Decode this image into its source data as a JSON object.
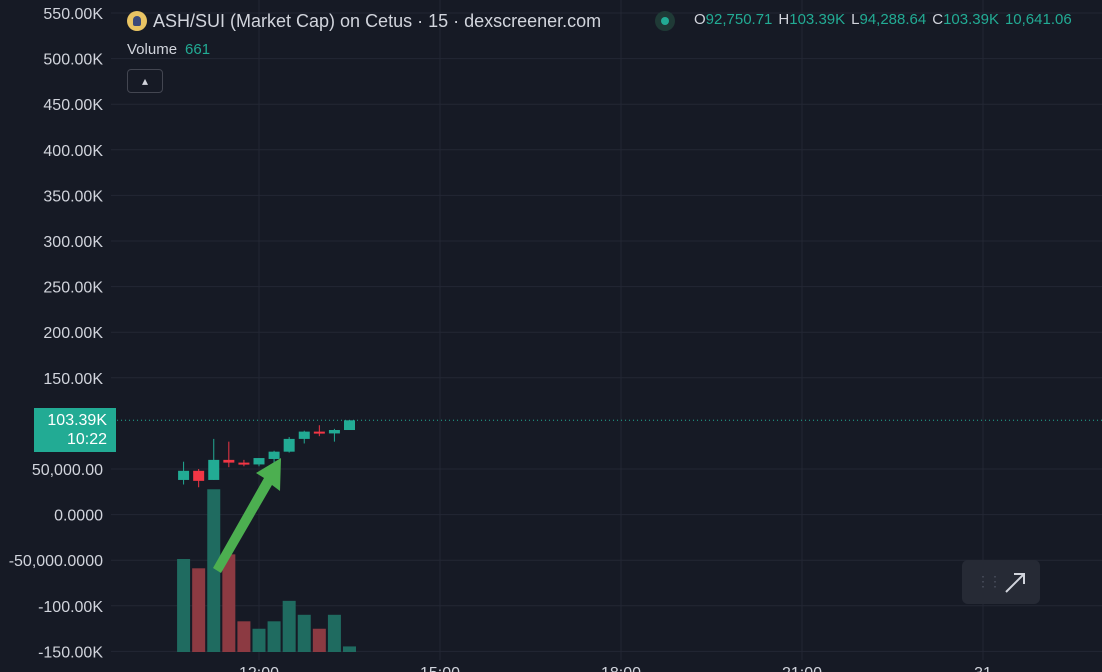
{
  "legend": {
    "title": "ASH/SUI (Market Cap) on Cetus · 15 · dexscreener.com",
    "ohlc": [
      {
        "key": "O",
        "value": "92,750.71"
      },
      {
        "key": "H",
        "value": "103.39K"
      },
      {
        "key": "L",
        "value": "94,288.64"
      },
      {
        "key": "C",
        "value": "103.39K"
      },
      {
        "key": "",
        "value": "10,641.06"
      }
    ],
    "volume_label": "Volume",
    "volume_value": "661",
    "collapse_icon": "▴"
  },
  "price_badge": {
    "price": "103.39K",
    "countdown": "10:22"
  },
  "colors": {
    "up": "#22ab94",
    "down": "#f23645",
    "volume_up": "#1f6b60",
    "volume_down": "#8c3a42",
    "arrow": "#4caf50",
    "grid": "#232734",
    "text": "#d1d4dc"
  },
  "chart_data": {
    "type": "candlestick",
    "ylim": [
      -160000,
      560000
    ],
    "yticks": [
      {
        "value": 550000,
        "label": "550.00K"
      },
      {
        "value": 500000,
        "label": "500.00K"
      },
      {
        "value": 450000,
        "label": "450.00K"
      },
      {
        "value": 400000,
        "label": "400.00K"
      },
      {
        "value": 350000,
        "label": "350.00K"
      },
      {
        "value": 300000,
        "label": "300.00K"
      },
      {
        "value": 250000,
        "label": "250.00K"
      },
      {
        "value": 200000,
        "label": "200.00K"
      },
      {
        "value": 150000,
        "label": "150.00K"
      },
      {
        "value": 50000,
        "label": "50,000.00"
      },
      {
        "value": 0,
        "label": "0.0000"
      },
      {
        "value": -50000,
        "label": "-50,000.0000"
      },
      {
        "value": -100000,
        "label": "-100.00K"
      },
      {
        "value": -150000,
        "label": "-150.00K"
      }
    ],
    "xticks": [
      {
        "time": "12:00",
        "label": "12:00"
      },
      {
        "time": "15:00",
        "label": "15:00"
      },
      {
        "time": "18:00",
        "label": "18:00"
      },
      {
        "time": "21:00",
        "label": "21:00"
      },
      {
        "time": "Day 31",
        "label": "31"
      }
    ],
    "candles": [
      {
        "time": "10:45",
        "open": 38000,
        "high": 58000,
        "low": 33000,
        "close": 48000
      },
      {
        "time": "11:00",
        "open": 48000,
        "high": 50000,
        "low": 30000,
        "close": 37000
      },
      {
        "time": "11:15",
        "open": 38000,
        "high": 83000,
        "low": 38000,
        "close": 60000
      },
      {
        "time": "11:30",
        "open": 60000,
        "high": 80000,
        "low": 52000,
        "close": 57000
      },
      {
        "time": "11:45",
        "open": 57000,
        "high": 60000,
        "low": 53000,
        "close": 55000
      },
      {
        "time": "12:00",
        "open": 55000,
        "high": 62000,
        "low": 53000,
        "close": 62000
      },
      {
        "time": "12:15",
        "open": 61000,
        "high": 70000,
        "low": 53000,
        "close": 69000
      },
      {
        "time": "12:30",
        "open": 69000,
        "high": 85000,
        "low": 68000,
        "close": 83000
      },
      {
        "time": "12:45",
        "open": 83000,
        "high": 92000,
        "low": 78000,
        "close": 91000
      },
      {
        "time": "13:00",
        "open": 91000,
        "high": 98000,
        "low": 86000,
        "close": 89000
      },
      {
        "time": "13:15",
        "open": 89000,
        "high": 94000,
        "low": 80000,
        "close": 92750.71
      },
      {
        "time": "13:30",
        "open": 92750.71,
        "high": 103390,
        "low": 94288.64,
        "close": 103390
      }
    ],
    "volume_bars": [
      {
        "time": "10:45",
        "value": 1.0,
        "direction": "up"
      },
      {
        "time": "11:00",
        "value": 0.9,
        "direction": "down"
      },
      {
        "time": "11:15",
        "value": 1.75,
        "direction": "up"
      },
      {
        "time": "11:30",
        "value": 1.05,
        "direction": "down"
      },
      {
        "time": "11:45",
        "value": 0.33,
        "direction": "down"
      },
      {
        "time": "12:00",
        "value": 0.25,
        "direction": "up"
      },
      {
        "time": "12:15",
        "value": 0.33,
        "direction": "up"
      },
      {
        "time": "12:30",
        "value": 0.55,
        "direction": "up"
      },
      {
        "time": "12:45",
        "value": 0.4,
        "direction": "up"
      },
      {
        "time": "13:00",
        "value": 0.25,
        "direction": "down"
      },
      {
        "time": "13:15",
        "value": 0.4,
        "direction": "up"
      },
      {
        "time": "13:30",
        "value": 0.06,
        "direction": "up"
      }
    ],
    "last_price": 103390
  }
}
